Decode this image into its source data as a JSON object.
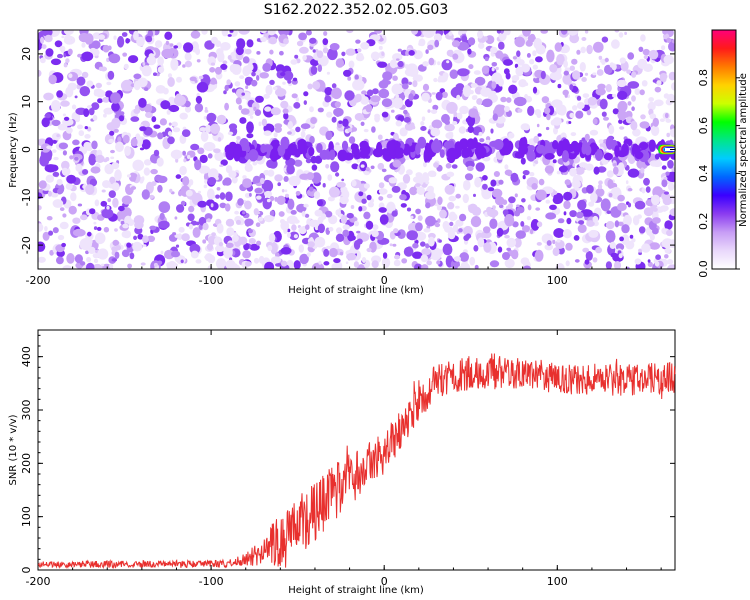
{
  "chart_data": [
    {
      "type": "heatmap",
      "title": "S162.2022.352.02.05.G03",
      "xlabel": "Height of straight line (km)",
      "ylabel": "Frequency (Hz)",
      "xlim": [
        -200,
        168
      ],
      "ylim": [
        -25,
        25
      ],
      "x_ticks": [
        -200,
        -100,
        0,
        100
      ],
      "y_ticks": [
        -20,
        -10,
        0,
        10,
        20
      ],
      "colorbar": {
        "label": "Normalized spectral amplitude",
        "range": [
          0,
          1
        ],
        "ticks": [
          0.0,
          0.2,
          0.4,
          0.6,
          0.8
        ],
        "colors": [
          "#ffffff",
          "#e9d8fb",
          "#c79df5",
          "#8b3cf0",
          "#3a00ff",
          "#0066ff",
          "#00ccff",
          "#00e68a",
          "#00ff00",
          "#ccff00",
          "#ffd200",
          "#ff7a00",
          "#ff1a1a",
          "#ff007a"
        ]
      },
      "features": {
        "background_noise_color": "#7c2cf0",
        "dc_line_frequency_hz": 0,
        "dc_line_intensifies_above_km": -90,
        "peak_at_right_edge": {
          "x_km": 168,
          "frequency_hz": 0,
          "value": 1.0
        }
      }
    },
    {
      "type": "line",
      "xlabel": "Height of straight line (km)",
      "ylabel": "SNR (10 * v/v)",
      "xlim": [
        -200,
        168
      ],
      "ylim": [
        0,
        450
      ],
      "x_ticks": [
        -200,
        -100,
        0,
        100
      ],
      "y_ticks": [
        0,
        100,
        200,
        300,
        400
      ],
      "color": "#e8302e",
      "profile": {
        "x": [
          -200,
          -90,
          -80,
          -60,
          -40,
          -20,
          0,
          20,
          30,
          50,
          80,
          100,
          130,
          168
        ],
        "y": [
          10,
          12,
          20,
          50,
          110,
          170,
          220,
          310,
          355,
          370,
          370,
          360,
          355,
          360
        ]
      },
      "noise_amplitude": {
        "x": [
          -200,
          -90,
          -80,
          -60,
          -40,
          -20,
          0,
          20,
          30,
          168
        ],
        "y": [
          6,
          7,
          12,
          55,
          60,
          50,
          40,
          35,
          32,
          30
        ]
      },
      "sample_count": 1200
    }
  ]
}
